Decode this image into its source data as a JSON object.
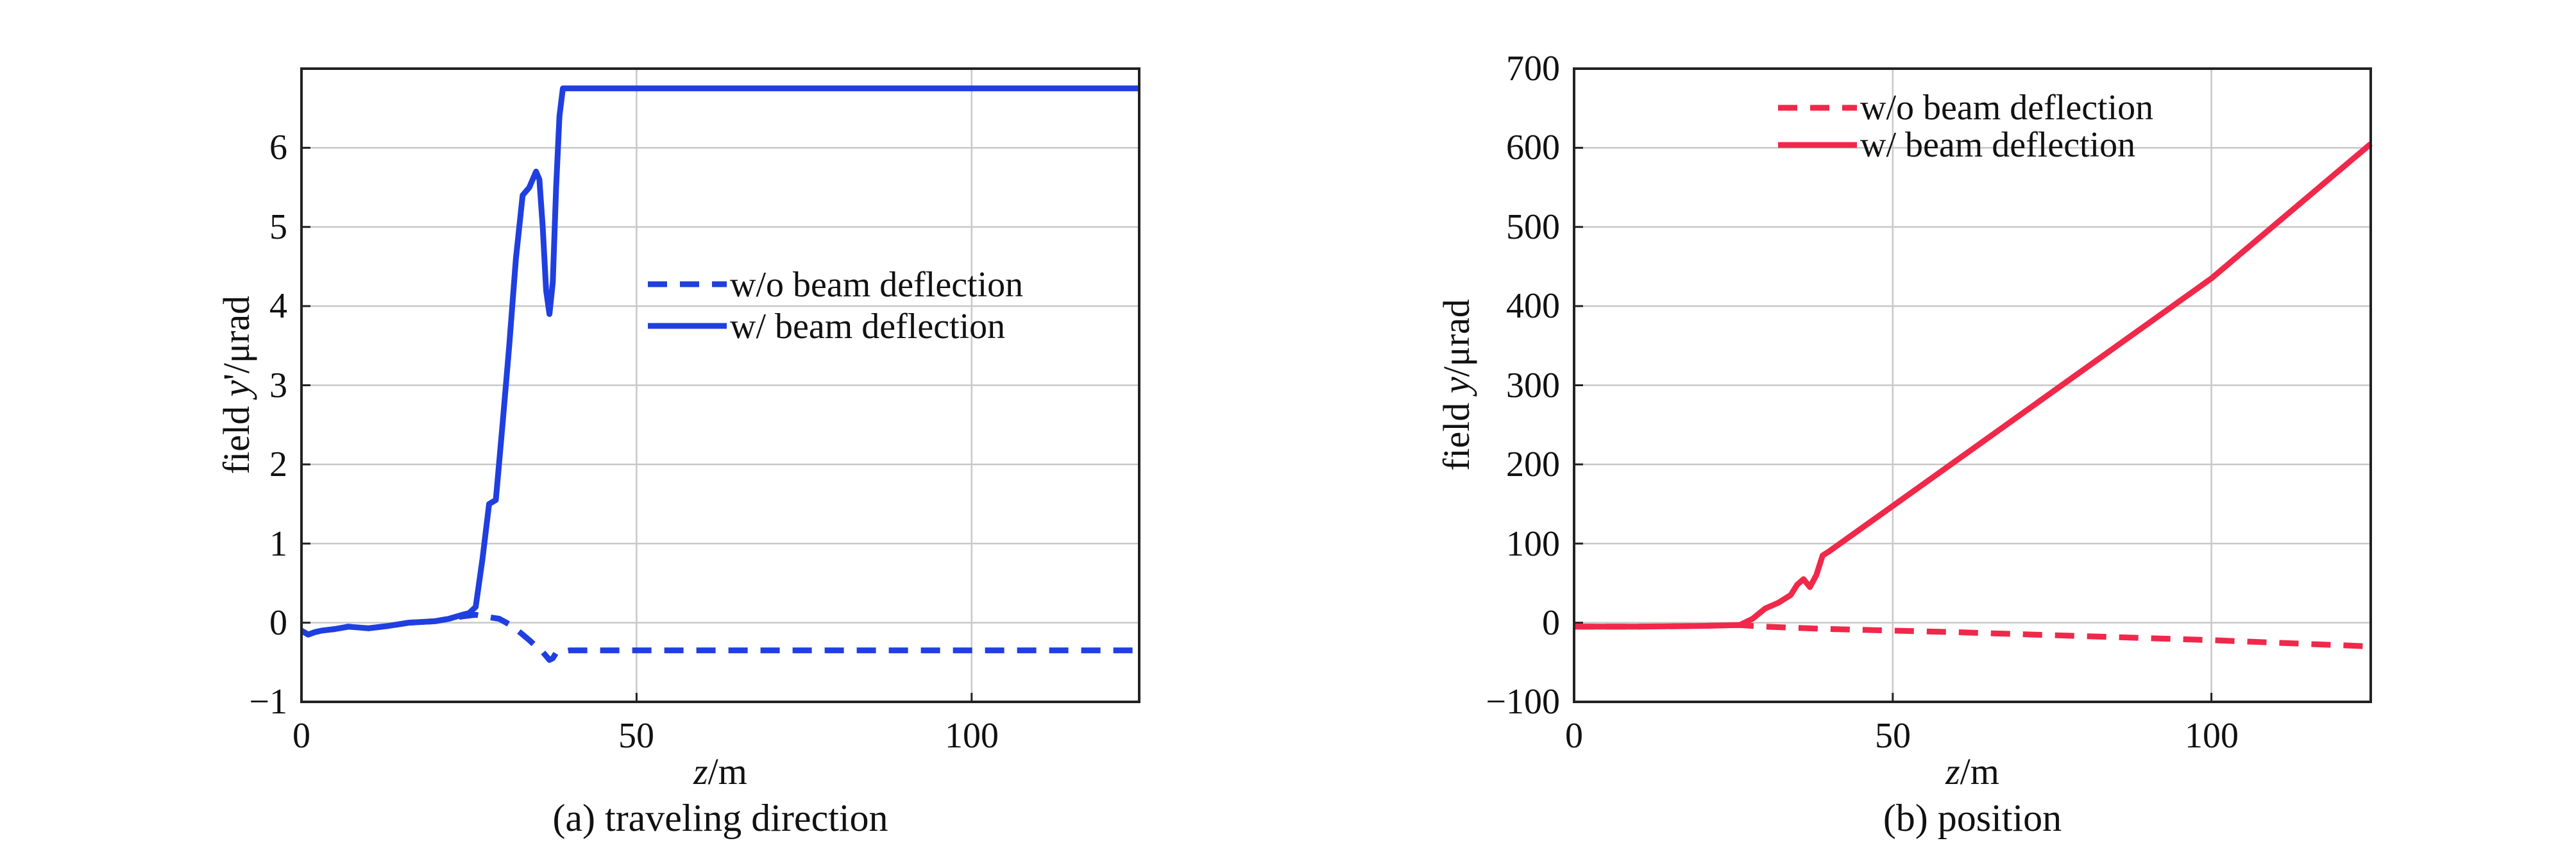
{
  "chart_data": [
    {
      "type": "line",
      "caption": "(a) traveling direction",
      "xlabel_italic": "z",
      "xlabel_rest": "/m",
      "ylabel_pre": "field ",
      "ylabel_italic": "y",
      "ylabel_post": "'/μrad",
      "xlim": [
        0,
        125
      ],
      "ylim": [
        -1,
        7
      ],
      "xticks": [
        0,
        50,
        100
      ],
      "yticks": [
        -1,
        0,
        1,
        2,
        3,
        4,
        5,
        6
      ],
      "xtick_labels": [
        "0",
        "50",
        "100"
      ],
      "ytick_labels": [
        "−1",
        "0",
        "1",
        "2",
        "3",
        "4",
        "5",
        "6"
      ],
      "grid": true,
      "legend_position": "center-right",
      "series": [
        {
          "name": "w/o beam deflection",
          "style": "dashed",
          "color": "#1f3fe0",
          "x": [
            0,
            1,
            2,
            3,
            5,
            7,
            10,
            13,
            16,
            20,
            22,
            24,
            26,
            28,
            29.5,
            31,
            32,
            33,
            34,
            35,
            36,
            37,
            37.5,
            38,
            40,
            50,
            75,
            100,
            125
          ],
          "y": [
            -0.1,
            -0.15,
            -0.12,
            -0.1,
            -0.08,
            -0.05,
            -0.07,
            -0.04,
            0.0,
            0.02,
            0.05,
            0.08,
            0.1,
            0.07,
            0.05,
            -0.02,
            -0.08,
            -0.15,
            -0.22,
            -0.3,
            -0.37,
            -0.47,
            -0.45,
            -0.38,
            -0.35,
            -0.35,
            -0.35,
            -0.35,
            -0.35
          ]
        },
        {
          "name": "w/ beam deflection",
          "style": "solid",
          "color": "#1f3fe0",
          "x": [
            0,
            1,
            2,
            3,
            5,
            7,
            10,
            13,
            16,
            20,
            22,
            24,
            25,
            26,
            27,
            28,
            29,
            30,
            31,
            32,
            33,
            34,
            35,
            35.5,
            36,
            36.5,
            37,
            37.5,
            38,
            38.5,
            39,
            40,
            50,
            75,
            100,
            125
          ],
          "y": [
            -0.1,
            -0.15,
            -0.12,
            -0.1,
            -0.08,
            -0.05,
            -0.07,
            -0.04,
            0.0,
            0.02,
            0.05,
            0.1,
            0.12,
            0.2,
            0.8,
            1.5,
            1.55,
            2.5,
            3.5,
            4.6,
            5.4,
            5.5,
            5.7,
            5.6,
            5.0,
            4.2,
            3.9,
            4.3,
            5.5,
            6.4,
            6.75,
            6.75,
            6.75,
            6.75,
            6.75,
            6.75
          ]
        }
      ]
    },
    {
      "type": "line",
      "caption": "(b) position",
      "xlabel_italic": "z",
      "xlabel_rest": "/m",
      "ylabel_pre": "field ",
      "ylabel_italic": "y",
      "ylabel_post": "/μrad",
      "xlim": [
        0,
        125
      ],
      "ylim": [
        -100,
        700
      ],
      "xticks": [
        0,
        50,
        100
      ],
      "yticks": [
        -100,
        0,
        100,
        200,
        300,
        400,
        500,
        600,
        700
      ],
      "xtick_labels": [
        "0",
        "50",
        "100"
      ],
      "ytick_labels": [
        "−100",
        "0",
        "100",
        "200",
        "300",
        "400",
        "500",
        "600",
        "700"
      ],
      "grid": true,
      "legend_position": "top-center",
      "series": [
        {
          "name": "w/o beam deflection",
          "style": "dashed",
          "color": "#f0284a",
          "x": [
            0,
            10,
            20,
            26,
            28,
            30,
            40,
            60,
            80,
            100,
            125
          ],
          "y": [
            -5,
            -5,
            -4,
            -3,
            -4,
            -5,
            -8,
            -12,
            -17,
            -22,
            -30
          ]
        },
        {
          "name": "w/ beam deflection",
          "style": "solid",
          "color": "#f0284a",
          "x": [
            0,
            10,
            20,
            26,
            28,
            30,
            32,
            34,
            35,
            36,
            37,
            38,
            39,
            40,
            60,
            80,
            100,
            125
          ],
          "y": [
            -5,
            -5,
            -4,
            -3,
            5,
            18,
            25,
            35,
            48,
            55,
            45,
            60,
            85,
            90,
            205,
            320,
            435,
            605
          ]
        }
      ]
    }
  ]
}
